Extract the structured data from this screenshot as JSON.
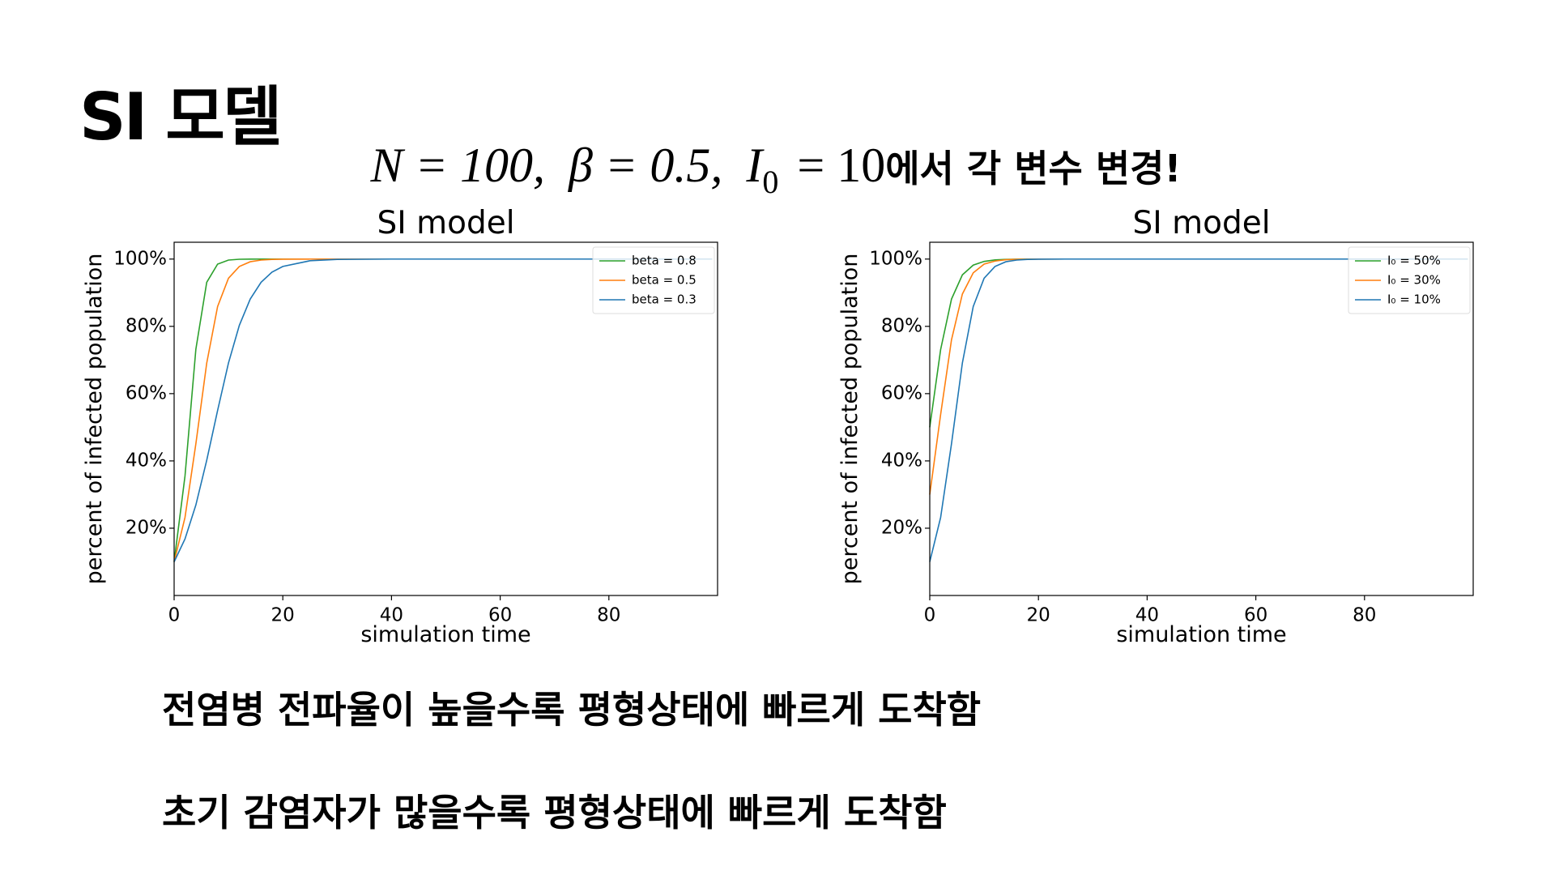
{
  "title": "SI 모델",
  "subtitle": {
    "parts": [
      "N = 100,",
      "β = 0.5,",
      "I",
      "0",
      "= 10",
      "에서 각 변수 변경!"
    ]
  },
  "notes": [
    "전염병 전파율이 높을수록 평형상태에 빠르게 도착함",
    "초기 감염자가 많을수록 평형상태에 빠르게 도착함"
  ],
  "chart_data": [
    {
      "type": "line",
      "title": "SI model",
      "x_label": "simulation time",
      "y_label": "percent of infected population",
      "x": [
        0,
        2,
        4,
        6,
        8,
        10,
        12,
        14,
        16,
        18,
        20,
        25,
        30,
        40,
        50,
        60,
        70,
        80,
        90,
        99
      ],
      "series": [
        {
          "name": "beta = 0.8",
          "color": "#2ca02c",
          "values": [
            10,
            35.5,
            73.2,
            93.1,
            98.5,
            99.7,
            99.94,
            99.99,
            100,
            100,
            100,
            100,
            100,
            100,
            100,
            100,
            100,
            100,
            100,
            100
          ]
        },
        {
          "name": "beta = 0.5",
          "color": "#ff7f0e",
          "values": [
            10,
            23.2,
            45.1,
            69.1,
            85.9,
            94.3,
            97.8,
            99.2,
            99.7,
            99.9,
            99.96,
            100,
            100,
            100,
            100,
            100,
            100,
            100,
            100,
            100
          ]
        },
        {
          "name": "beta = 0.3",
          "color": "#1f77b4",
          "values": [
            10,
            16.8,
            26.9,
            40.2,
            55.0,
            69.1,
            80.3,
            88.1,
            93.1,
            96.1,
            97.8,
            99.5,
            99.9,
            100,
            100,
            100,
            100,
            100,
            100,
            100
          ]
        }
      ],
      "xlim": [
        0,
        100
      ],
      "xticks": [
        0,
        20,
        40,
        60,
        80
      ],
      "ylim": [
        0,
        105
      ],
      "yticks": [
        {
          "value": 20,
          "label": "20%"
        },
        {
          "value": 40,
          "label": "40%"
        },
        {
          "value": 60,
          "label": "60%"
        },
        {
          "value": 80,
          "label": "80%"
        },
        {
          "value": 100,
          "label": "100%"
        }
      ],
      "grid": false,
      "legend": "upper right"
    },
    {
      "type": "line",
      "title": "SI model",
      "x_label": "simulation time",
      "y_label": "percent of infected population",
      "x": [
        0,
        2,
        4,
        6,
        8,
        10,
        12,
        14,
        16,
        18,
        20,
        25,
        30,
        40,
        50,
        60,
        70,
        80,
        90,
        99
      ],
      "series": [
        {
          "name": "I₀ = 50%",
          "color": "#2ca02c",
          "values": [
            50,
            73.1,
            88.1,
            95.3,
            98.2,
            99.3,
            99.75,
            99.9,
            99.97,
            99.99,
            100,
            100,
            100,
            100,
            100,
            100,
            100,
            100,
            100,
            100
          ]
        },
        {
          "name": "I₀ = 30%",
          "color": "#ff7f0e",
          "values": [
            30,
            53.8,
            76.0,
            89.6,
            95.9,
            98.5,
            99.4,
            99.8,
            99.92,
            99.97,
            99.99,
            100,
            100,
            100,
            100,
            100,
            100,
            100,
            100,
            100
          ]
        },
        {
          "name": "I₀ = 10%",
          "color": "#1f77b4",
          "values": [
            10,
            23.2,
            45.1,
            69.1,
            85.9,
            94.3,
            97.8,
            99.2,
            99.7,
            99.9,
            99.96,
            100,
            100,
            100,
            100,
            100,
            100,
            100,
            100,
            100
          ]
        }
      ],
      "xlim": [
        0,
        100
      ],
      "xticks": [
        0,
        20,
        40,
        60,
        80
      ],
      "ylim": [
        0,
        105
      ],
      "yticks": [
        {
          "value": 20,
          "label": "20%"
        },
        {
          "value": 40,
          "label": "40%"
        },
        {
          "value": 60,
          "label": "60%"
        },
        {
          "value": 80,
          "label": "80%"
        },
        {
          "value": 100,
          "label": "100%"
        }
      ],
      "grid": false,
      "legend": "upper right"
    }
  ]
}
